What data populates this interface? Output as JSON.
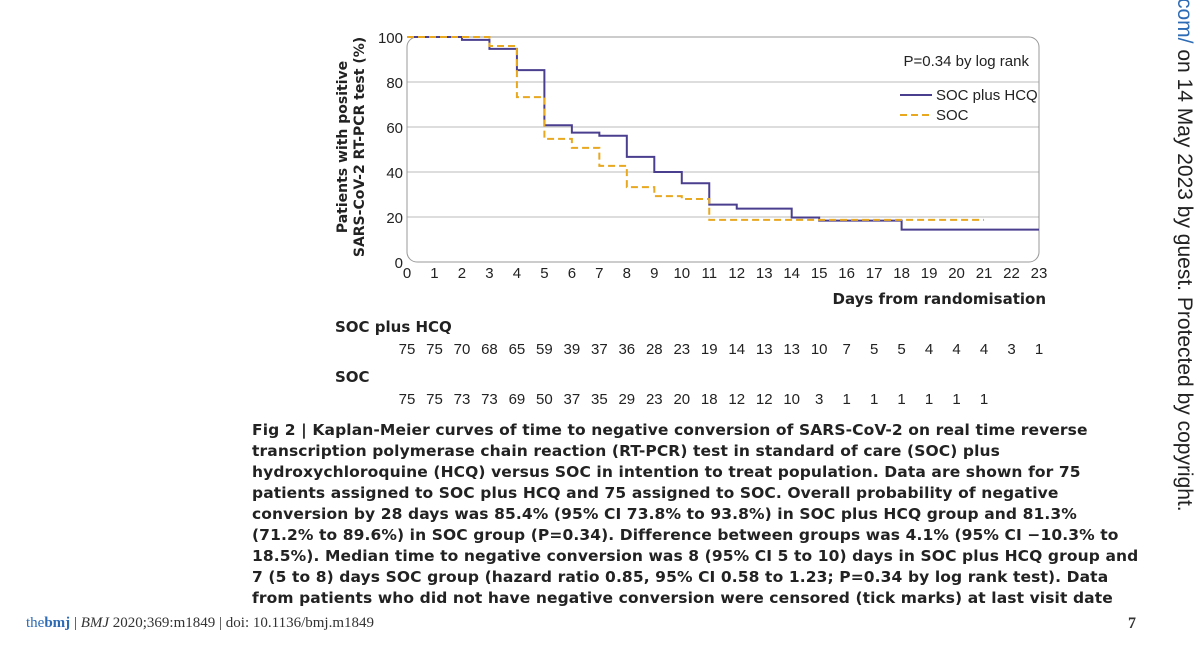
{
  "chart_data": {
    "type": "line",
    "subtype": "kaplan-meier step",
    "xlabel": "Days from randomisation",
    "ylabel_lines": [
      "Patients with positive",
      "SARS-CoV-2 RT-PCR test (%)"
    ],
    "xlim": [
      0,
      23
    ],
    "ylim": [
      0,
      100
    ],
    "x_ticks": [
      0,
      1,
      2,
      3,
      4,
      5,
      6,
      7,
      8,
      9,
      10,
      11,
      12,
      13,
      14,
      15,
      16,
      17,
      18,
      19,
      20,
      21,
      22,
      23
    ],
    "y_ticks": [
      0,
      20,
      40,
      60,
      80,
      100
    ],
    "grid": "horizontal",
    "annotation": "P=0.34 by log rank",
    "legend_position": "top-right",
    "series": [
      {
        "name": "SOC plus HCQ",
        "color": "#4a3f8f",
        "style": "solid",
        "x": [
          0,
          2,
          3,
          4,
          5,
          6,
          7,
          8,
          9,
          10,
          11,
          12,
          14,
          15,
          18,
          23
        ],
        "y": [
          100,
          98.7,
          94.7,
          85.3,
          60.8,
          57.5,
          56.1,
          46.7,
          40.0,
          35.0,
          25.5,
          23.7,
          19.8,
          18.4,
          14.4,
          14.4
        ]
      },
      {
        "name": "SOC",
        "color": "#e8a820",
        "style": "dashed",
        "x": [
          0,
          3,
          4,
          5,
          6,
          7,
          8,
          9,
          10,
          11,
          21
        ],
        "y": [
          100,
          96.0,
          73.3,
          54.7,
          50.7,
          42.7,
          33.3,
          29.3,
          28.0,
          18.7,
          18.7
        ]
      }
    ]
  },
  "risk_table": {
    "groups": [
      {
        "label": "SOC plus HCQ",
        "values": [
          "75",
          "75",
          "70",
          "68",
          "65",
          "59",
          "39",
          "37",
          "36",
          "28",
          "23",
          "19",
          "14",
          "13",
          "13",
          "10",
          "7",
          "5",
          "5",
          "4",
          "4",
          "4",
          "3",
          "1"
        ]
      },
      {
        "label": "SOC",
        "values": [
          "75",
          "75",
          "73",
          "73",
          "69",
          "50",
          "37",
          "35",
          "29",
          "23",
          "20",
          "18",
          "12",
          "12",
          "10",
          "3",
          "1",
          "1",
          "1",
          "1",
          "1",
          "1"
        ]
      }
    ]
  },
  "caption": "Fig 2 | Kaplan-Meier curves of time to negative conversion of SARS-CoV-2 on real time reverse transcription polymerase chain reaction (RT-PCR) test in standard of care (SOC) plus hydroxychloroquine (HCQ) versus SOC in intention to treat population. Data are shown for 75 patients assigned to SOC plus HCQ and 75 assigned to SOC. Overall probability of negative conversion by 28 days was 85.4% (95% CI 73.8% to 93.8%) in SOC plus HCQ group and 81.3% (71.2% to 89.6%) in SOC group (P=0.34). Difference between groups was 4.1% (95% CI −10.3% to 18.5%). Median time to negative conversion was 8 (95% CI 5 to 10) days in SOC plus HCQ group and 7 (5 to 8) days SOC group (hazard ratio 0.85, 95% CI 0.58 to 1.23; P=0.34 by log rank test). Data from patients who did not have negative conversion were censored (tick marks) at last visit date",
  "footer": {
    "logo_the": "the",
    "logo_bmj": "bmj",
    "sep1": "|",
    "citation": "BMJ",
    "citation_rest": "2020;369:m1849",
    "sep2": "|",
    "doi": "doi: 10.1136/bmj.m1849",
    "page": "7"
  },
  "side_text": {
    "url_part": "com/",
    "rest": " on 14 May 2023 by guest. Protected by copyright."
  }
}
